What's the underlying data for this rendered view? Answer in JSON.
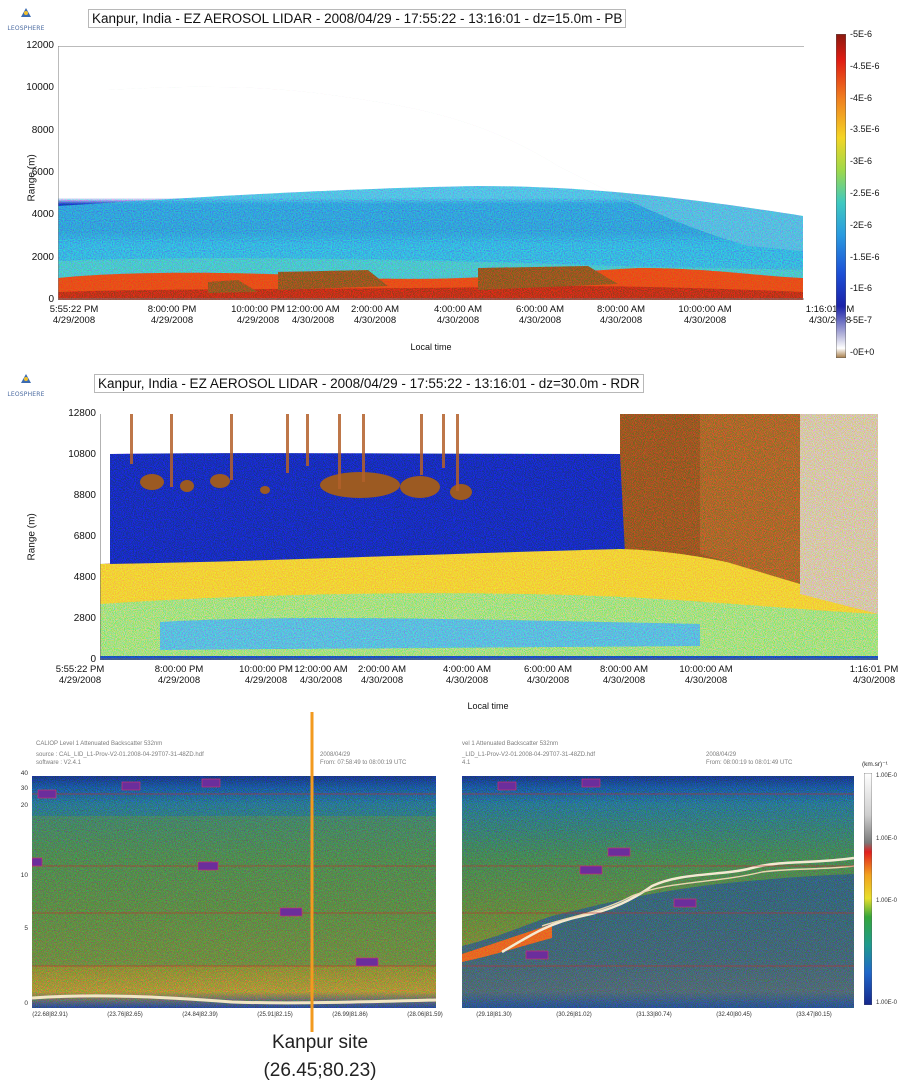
{
  "logo": {
    "text": "LEOSPHERE",
    "icon": "leosphere-logo-icon"
  },
  "colors": {
    "cloud_brown": "#9c5a22",
    "site_line": "#f29a1f"
  },
  "chart_data": [
    {
      "type": "heatmap",
      "title": "Kanpur, India - EZ AEROSOL LIDAR - 2008/04/29 - 17:55:22 - 13:16:01 - dz=15.0m - PB",
      "xlabel": "Local time",
      "ylabel": "Range (m)",
      "ylim": [
        0,
        12000
      ],
      "yticks": [
        "12000",
        "10000",
        "8000",
        "6000",
        "4000",
        "2000",
        "0"
      ],
      "xticks": [
        {
          "time": "5:55:22 PM",
          "date": "4/29/2008"
        },
        {
          "time": "8:00:00 PM",
          "date": "4/29/2008"
        },
        {
          "time": "10:00:00 PM",
          "date": "4/29/2008"
        },
        {
          "time": "12:00:00 AM",
          "date": "4/30/2008"
        },
        {
          "time": "2:00:00 AM",
          "date": "4/30/2008"
        },
        {
          "time": "4:00:00 AM",
          "date": "4/30/2008"
        },
        {
          "time": "6:00:00 AM",
          "date": "4/30/2008"
        },
        {
          "time": "8:00:00 AM",
          "date": "4/30/2008"
        },
        {
          "time": "10:00:00 AM",
          "date": "4/30/2008"
        },
        {
          "time": "1:16:01 PM",
          "date": "4/30/2008"
        }
      ],
      "colorbar": [
        "-5E-6",
        "-4.5E-6",
        "-4E-6",
        "-3.5E-6",
        "-3E-6",
        "-2.5E-6",
        "-2E-6",
        "-1.5E-6",
        "-1E-6",
        "-5E-7",
        "-0E+0"
      ]
    },
    {
      "type": "heatmap",
      "title": "Kanpur, India - EZ AEROSOL LIDAR - 2008/04/29 - 17:55:22 - 13:16:01 - dz=30.0m - RDR",
      "xlabel": "Local time",
      "ylabel": "Range (m)",
      "ylim": [
        0,
        12800
      ],
      "yticks": [
        "12800",
        "10800",
        "8800",
        "6800",
        "4800",
        "2800",
        "0"
      ],
      "xticks": [
        {
          "time": "5:55:22 PM",
          "date": "4/29/2008"
        },
        {
          "time": "8:00:00 PM",
          "date": "4/29/2008"
        },
        {
          "time": "10:00:00 PM",
          "date": "4/29/2008"
        },
        {
          "time": "12:00:00 AM",
          "date": "4/30/2008"
        },
        {
          "time": "2:00:00 AM",
          "date": "4/30/2008"
        },
        {
          "time": "4:00:00 AM",
          "date": "4/30/2008"
        },
        {
          "time": "6:00:00 AM",
          "date": "4/30/2008"
        },
        {
          "time": "8:00:00 AM",
          "date": "4/30/2008"
        },
        {
          "time": "10:00:00 AM",
          "date": "4/30/2008"
        },
        {
          "time": "1:16:01 PM",
          "date": "4/30/2008"
        }
      ]
    },
    {
      "type": "heatmap",
      "header": {
        "title": "CALIOP Level 1 Attenuated Backscatter 532nm",
        "source": "source : CAL_LID_L1-Prov-V2-01.2008-04-29T07-31-48ZD.hdf",
        "software": "software : V2.4.1",
        "date": "2008/04/29",
        "range": "From: 07:58:49 to 08:00:19 UTC"
      },
      "yticks": [
        "40",
        "30",
        "20",
        "10",
        "5",
        "0"
      ],
      "xticks": [
        "(22.68|82.91)",
        "(23.76|82.65)",
        "(24.84|82.39)",
        "(25.91|82.15)",
        "(26.99|81.86)",
        "(28.06|81.59)"
      ]
    },
    {
      "type": "heatmap",
      "header": {
        "title": "vel 1 Attenuated Backscatter 532nm",
        "source": "_LID_L1-Prov-V2-01.2008-04-29T07-31-48ZD.hdf",
        "software": "4.1",
        "date": "2008/04/29",
        "range": "From: 08:00:19 to 08:01:49 UTC"
      },
      "xticks": [
        "(29.18|81.30)",
        "(30.26|81.02)",
        "(31.33|80.74)",
        "(32.40|80.45)",
        "(33.47|80.15)"
      ],
      "colorbar_title": "(km.sr)⁻¹",
      "colorbar": [
        "1.00E-0",
        "1.00E-0",
        "1.00E-0",
        "1.00E-0"
      ]
    }
  ],
  "annotation": {
    "line1": "Kanpur site",
    "line2": "(26.45;80.23)"
  }
}
